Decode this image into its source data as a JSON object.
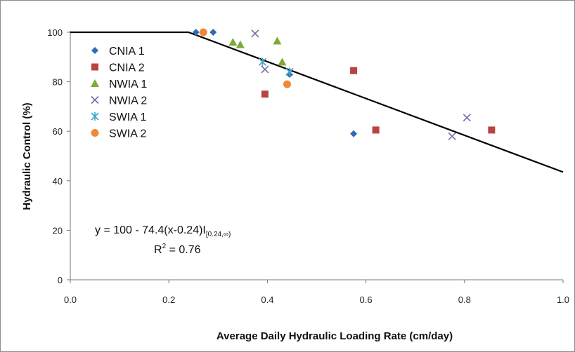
{
  "chart_data": {
    "type": "scatter",
    "xlabel": "Average Daily Hydraulic Loading Rate (cm/day)",
    "ylabel": "Hydraulic Control (%)",
    "xlim": [
      0,
      1.0
    ],
    "ylim": [
      0,
      100
    ],
    "x_ticks": [
      "0.0",
      "0.2",
      "0.4",
      "0.6",
      "0.8",
      "1.0"
    ],
    "y_ticks": [
      "0",
      "20",
      "40",
      "60",
      "80",
      "100"
    ],
    "legend_position": "top-left",
    "series": [
      {
        "name": "CNIA 1",
        "marker": "diamond",
        "color": "#2e6db4",
        "points": [
          [
            0.255,
            100
          ],
          [
            0.29,
            100
          ],
          [
            0.445,
            83
          ],
          [
            0.575,
            59
          ]
        ]
      },
      {
        "name": "CNIA 2",
        "marker": "square",
        "color": "#b84340",
        "points": [
          [
            0.395,
            75
          ],
          [
            0.575,
            84.5
          ],
          [
            0.62,
            60.5
          ],
          [
            0.855,
            60.5
          ]
        ]
      },
      {
        "name": "NWIA 1",
        "marker": "triangle",
        "color": "#7cab3a",
        "points": [
          [
            0.33,
            96
          ],
          [
            0.345,
            95
          ],
          [
            0.42,
            96.5
          ],
          [
            0.43,
            88
          ]
        ]
      },
      {
        "name": "NWIA 2",
        "marker": "x",
        "color": "#7b68a8",
        "points": [
          [
            0.375,
            99.5
          ],
          [
            0.395,
            85
          ],
          [
            0.775,
            58
          ],
          [
            0.805,
            65.5
          ]
        ]
      },
      {
        "name": "SWIA 1",
        "marker": "star",
        "color": "#3ea5c6",
        "points": [
          [
            0.39,
            88
          ],
          [
            0.445,
            84
          ]
        ]
      },
      {
        "name": "SWIA 2",
        "marker": "circle",
        "color": "#ee8a35",
        "points": [
          [
            0.27,
            100
          ],
          [
            0.44,
            79
          ]
        ]
      }
    ],
    "fit_line": {
      "color": "#000000",
      "points": [
        [
          0.0,
          100
        ],
        [
          0.24,
          100
        ],
        [
          1.0,
          43.5
        ]
      ],
      "equation": "y = 100 - 74.4(x-0.24)I",
      "equation_subscript": "[0.24,∞)",
      "r2_label": "R",
      "r2_exponent": "2",
      "r2_value": " = 0.76"
    }
  }
}
